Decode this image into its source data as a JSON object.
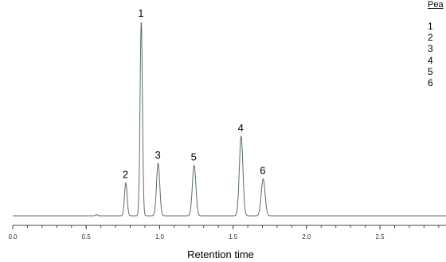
{
  "chart_data": {
    "type": "line",
    "xlabel": "Retention time",
    "ylabel": "",
    "xlim": [
      0.0,
      2.95
    ],
    "x_ticks": [
      "0.0",
      "0.5",
      "1.0",
      "1.5",
      "2.0",
      "2.5"
    ],
    "grid": false,
    "baseline": 0.0,
    "series": [
      {
        "color": "#5a6f62",
        "peaks": [
          {
            "label": "1",
            "x": 0.875,
            "height": 100,
            "width": 0.008
          },
          {
            "label": "2",
            "x": 0.77,
            "height": 17,
            "width": 0.009
          },
          {
            "label": "3",
            "x": 0.99,
            "height": 27,
            "width": 0.011
          },
          {
            "label": "5",
            "x": 1.235,
            "height": 26,
            "width": 0.012
          },
          {
            "label": "4",
            "x": 1.555,
            "height": 41,
            "width": 0.012
          },
          {
            "label": "6",
            "x": 1.705,
            "height": 19,
            "width": 0.013
          }
        ],
        "minor_features": [
          {
            "x": 0.57,
            "height": 0.6,
            "width": 0.006
          }
        ]
      }
    ],
    "legend": {
      "header": "Pea",
      "entries": [
        "1",
        "2",
        "3",
        "4",
        "5",
        "6"
      ]
    }
  }
}
